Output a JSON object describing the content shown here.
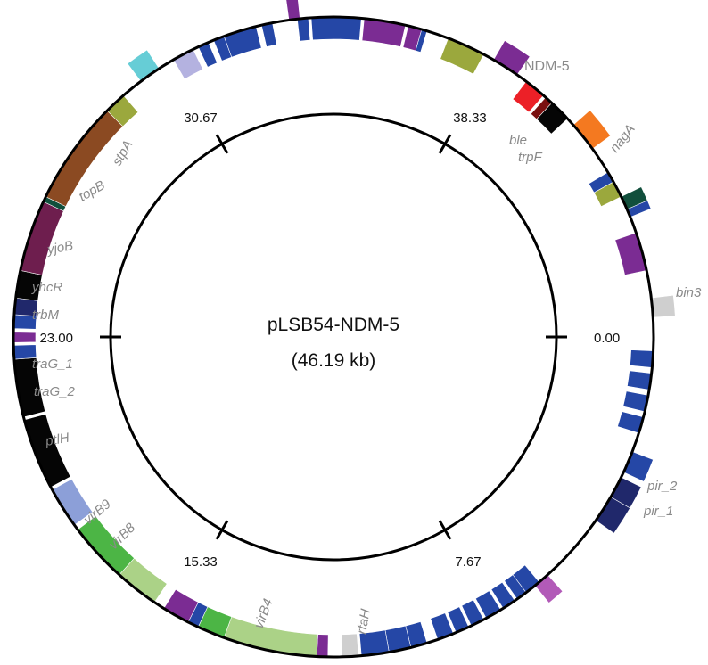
{
  "plasmid": {
    "name": "pLSB54-NDM-5",
    "size_label": "(46.19 kb)",
    "total_kb": 46.19
  },
  "scale_ticks": [
    {
      "label": "0.00",
      "angle": 90
    },
    {
      "label": "7.67",
      "angle": 150
    },
    {
      "label": "15.33",
      "angle": 210
    },
    {
      "label": "23.00",
      "angle": 270
    },
    {
      "label": "30.67",
      "angle": 330
    },
    {
      "label": "38.33",
      "angle": 30
    }
  ],
  "colors": {
    "blue": "#2547a6",
    "lightblue": "#8c9fd8",
    "lavender": "#b4b2e0",
    "purple": "#7b2c93",
    "olive": "#9ba83d",
    "cyan": "#66cdd6",
    "brown": "#8b4a22",
    "maroon": "#6e1e4e",
    "navy": "#20286b",
    "black": "#050505",
    "green": "#4cb545",
    "lightgreen": "#abd287",
    "gray": "#cfcfcf",
    "red": "#ec2027",
    "darkred": "#7a1010",
    "orange": "#f47920",
    "darkgreen": "#114f3c",
    "pink": "#b25ab8",
    "accent_red": "#ec2027",
    "label_gray": "#8a8a8a"
  },
  "segments": [
    {
      "s": 92.5,
      "e": 95.5,
      "c": "blue",
      "strand": "in"
    },
    {
      "s": 96.5,
      "e": 99.5,
      "c": "blue",
      "strand": "in"
    },
    {
      "s": 100.5,
      "e": 103.5,
      "c": "blue",
      "strand": "in"
    },
    {
      "s": 104.5,
      "e": 107.5,
      "c": "blue",
      "strand": "in"
    },
    {
      "s": 111,
      "e": 115,
      "c": "blue",
      "strand": "out"
    },
    {
      "s": 116,
      "e": 120,
      "c": "navy",
      "strand": "out"
    },
    {
      "s": 120,
      "e": 125,
      "c": "navy",
      "strand": "out"
    },
    {
      "s": 138,
      "e": 141,
      "c": "pink",
      "strand": "out"
    },
    {
      "s": 140,
      "e": 143,
      "c": "blue",
      "strand": "in"
    },
    {
      "s": 143,
      "e": 145,
      "c": "blue",
      "strand": "in"
    },
    {
      "s": 145.5,
      "e": 148,
      "c": "blue",
      "strand": "in"
    },
    {
      "s": 148.5,
      "e": 151.5,
      "c": "blue",
      "strand": "in"
    },
    {
      "s": 152,
      "e": 154.5,
      "c": "blue",
      "strand": "in"
    },
    {
      "s": 155,
      "e": 157.5,
      "c": "blue",
      "strand": "in"
    },
    {
      "s": 158,
      "e": 161,
      "c": "blue",
      "strand": "in"
    },
    {
      "s": 163,
      "e": 166,
      "c": "blue",
      "strand": "in"
    },
    {
      "s": 166,
      "e": 170,
      "c": "blue",
      "strand": "in"
    },
    {
      "s": 170,
      "e": 175,
      "c": "blue",
      "strand": "in"
    },
    {
      "s": 175.5,
      "e": 178.5,
      "c": "gray",
      "strand": "in"
    },
    {
      "s": 181,
      "e": 183,
      "c": "purple",
      "strand": "in"
    },
    {
      "s": 183,
      "e": 200,
      "c": "lightgreen",
      "strand": "in"
    },
    {
      "s": 200,
      "e": 205,
      "c": "green",
      "strand": "in"
    },
    {
      "s": 205,
      "e": 207,
      "c": "blue",
      "strand": "in"
    },
    {
      "s": 207,
      "e": 212,
      "c": "purple",
      "strand": "in"
    },
    {
      "s": 214,
      "e": 222,
      "c": "lightgreen",
      "strand": "in"
    },
    {
      "s": 222,
      "e": 233,
      "c": "green",
      "strand": "in"
    },
    {
      "s": 234,
      "e": 241.5,
      "c": "lightblue",
      "strand": "in"
    },
    {
      "s": 242,
      "e": 255,
      "c": "black",
      "strand": "in"
    },
    {
      "s": 255.5,
      "e": 266,
      "c": "black",
      "strand": "in"
    },
    {
      "s": 266,
      "e": 268.5,
      "c": "blue",
      "strand": "in"
    },
    {
      "s": 269,
      "e": 271,
      "c": "purple",
      "strand": "in"
    },
    {
      "s": 271.5,
      "e": 274,
      "c": "blue",
      "strand": "in"
    },
    {
      "s": 274,
      "e": 277,
      "c": "navy",
      "strand": "in"
    },
    {
      "s": 277,
      "e": 282,
      "c": "black",
      "strand": "in"
    },
    {
      "s": 282,
      "e": 295,
      "c": "maroon",
      "strand": "in"
    },
    {
      "s": 295,
      "e": 296,
      "c": "darkgreen",
      "strand": "in"
    },
    {
      "s": 296,
      "e": 315,
      "c": "brown",
      "strand": "in"
    },
    {
      "s": 315,
      "e": 319,
      "c": "olive",
      "strand": "in"
    },
    {
      "s": 323,
      "e": 327,
      "c": "cyan",
      "strand": "out"
    },
    {
      "s": 330,
      "e": 334,
      "c": "lavender",
      "strand": "in"
    },
    {
      "s": 335,
      "e": 337,
      "c": "blue",
      "strand": "in"
    },
    {
      "s": 338,
      "e": 340,
      "c": "blue",
      "strand": "in"
    },
    {
      "s": 340,
      "e": 346,
      "c": "blue",
      "strand": "in"
    },
    {
      "s": 347,
      "e": 349,
      "c": "blue",
      "strand": "in"
    },
    {
      "s": 352,
      "e": 354,
      "c": "purple",
      "strand": "out"
    },
    {
      "s": 353.5,
      "e": 355.5,
      "c": "blue",
      "strand": "in"
    },
    {
      "s": 356,
      "e": 5,
      "c": "blue",
      "strand": "in"
    },
    {
      "s": 5.5,
      "e": 13,
      "c": "purple",
      "strand": "in"
    },
    {
      "s": 13.5,
      "e": 16,
      "c": "purple",
      "strand": "in"
    },
    {
      "s": 16,
      "e": 17,
      "c": "blue",
      "strand": "in"
    },
    {
      "s": 21,
      "e": 28,
      "c": "olive",
      "strand": "in"
    },
    {
      "s": 30,
      "e": 35,
      "c": "purple",
      "strand": "out"
    },
    {
      "s": 37,
      "e": 41,
      "c": "red",
      "strand": "in"
    },
    {
      "s": 41.5,
      "e": 43,
      "c": "darkred",
      "strand": "in"
    },
    {
      "s": 43,
      "e": 47,
      "c": "black",
      "strand": "in"
    },
    {
      "s": 48.5,
      "e": 54,
      "c": "orange",
      "strand": "out"
    },
    {
      "s": 59,
      "e": 61,
      "c": "blue",
      "strand": "in"
    },
    {
      "s": 61,
      "e": 64,
      "c": "olive",
      "strand": "in"
    },
    {
      "s": 64,
      "e": 66.5,
      "c": "darkgreen",
      "strand": "out"
    },
    {
      "s": 66.5,
      "e": 68,
      "c": "blue",
      "strand": "out"
    },
    {
      "s": 71,
      "e": 78,
      "c": "purple",
      "strand": "in"
    },
    {
      "s": 83,
      "e": 86.5,
      "c": "gray",
      "strand": "out"
    }
  ],
  "gene_labels": [
    {
      "text": "NDM-5",
      "color": "accent_red",
      "rot": 0
    },
    {
      "text": "ble",
      "color": "label_gray",
      "rot": 0
    },
    {
      "text": "trpF",
      "color": "label_gray",
      "rot": 0
    },
    {
      "text": "nagA",
      "color": "label_gray",
      "rot": -52
    },
    {
      "text": "bin3",
      "color": "label_gray",
      "rot": 0
    },
    {
      "text": "pir_2",
      "color": "label_gray",
      "rot": 0
    },
    {
      "text": "pir_1",
      "color": "label_gray",
      "rot": 0
    },
    {
      "text": "rfaH",
      "color": "label_gray",
      "rot": -80
    },
    {
      "text": "virB4",
      "color": "label_gray",
      "rot": -70
    },
    {
      "text": "virB8",
      "color": "label_gray",
      "rot": -45
    },
    {
      "text": "virB9",
      "color": "label_gray",
      "rot": -40
    },
    {
      "text": "ptlH",
      "color": "label_gray",
      "rot": -10
    },
    {
      "text": "traG_2",
      "color": "label_gray",
      "rot": 0
    },
    {
      "text": "traG_1",
      "color": "label_gray",
      "rot": 0
    },
    {
      "text": "trbM",
      "color": "label_gray",
      "rot": 0
    },
    {
      "text": "yhcR",
      "color": "label_gray",
      "rot": 0
    },
    {
      "text": "yjoB",
      "color": "label_gray",
      "rot": -10
    },
    {
      "text": "topB",
      "color": "label_gray",
      "rot": -30
    },
    {
      "text": "stpA",
      "color": "label_gray",
      "rot": -60
    }
  ]
}
